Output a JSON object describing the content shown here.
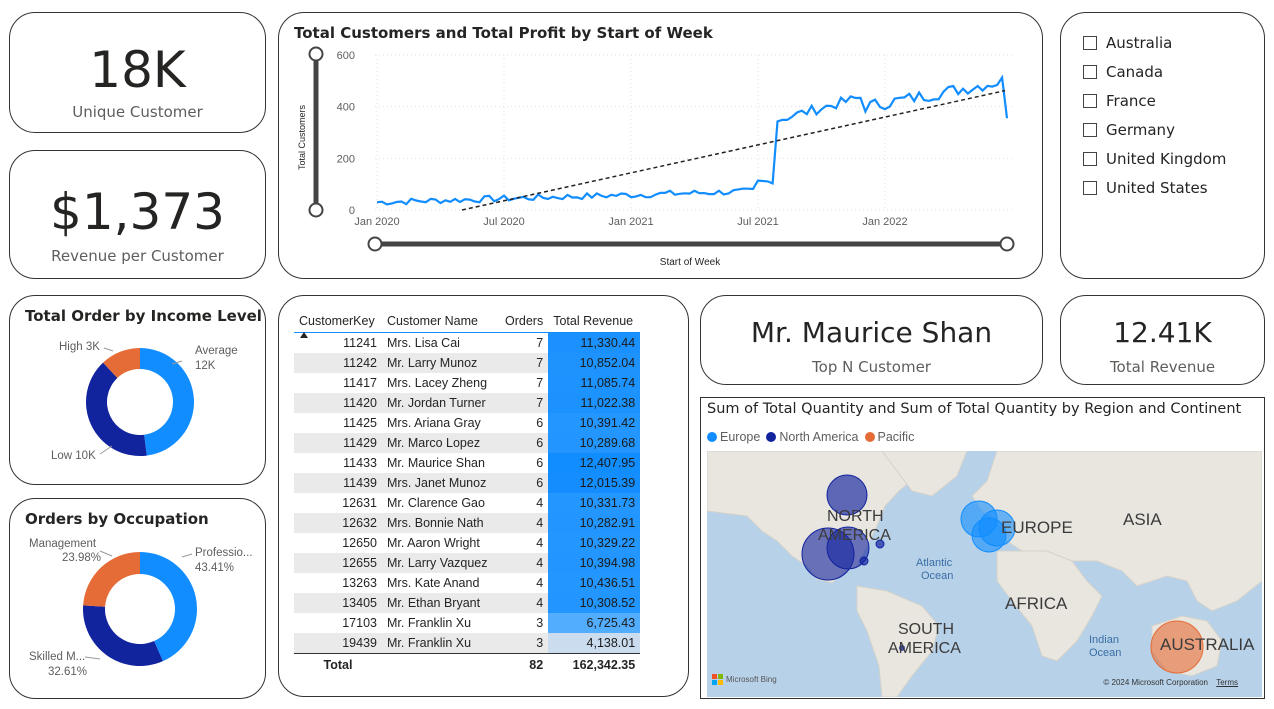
{
  "kpi_customers": {
    "value": "18K",
    "label": "Unique Customer"
  },
  "kpi_rev_per_cust": {
    "value": "$1,373",
    "label": "Revenue per Customer"
  },
  "line_chart": {
    "title": "Total Customers and Total Profit by Start of Week",
    "ylabel": "Total Customers",
    "xlabel": "Start of Week",
    "yticks": [
      "600",
      "400",
      "200",
      "0"
    ],
    "xticks": [
      "Jan 2020",
      "Jul 2020",
      "Jan 2021",
      "Jul 2021",
      "Jan 2022"
    ]
  },
  "country_slicer": {
    "items": [
      "Australia",
      "Canada",
      "France",
      "Germany",
      "United Kingdom",
      "United States"
    ]
  },
  "income_donut": {
    "title": "Total Order by Income Level",
    "labels": {
      "average": "Average",
      "average_val": "12K",
      "high": "High 3K",
      "low": "Low 10K"
    }
  },
  "occupation_donut": {
    "title": "Orders by Occupation",
    "labels": {
      "management": "Management",
      "management_pct": "23.98%",
      "professional": "Professio...",
      "professional_pct": "43.41%",
      "skilled": "Skilled M...",
      "skilled_pct": "32.61%"
    }
  },
  "customer_table": {
    "headers": [
      "CustomerKey",
      "Customer Name",
      "Orders",
      "Total Revenue"
    ],
    "rows": [
      {
        "key": "11241",
        "name": "Mrs. Lisa Cai",
        "orders": "7",
        "revenue": "11,330.44"
      },
      {
        "key": "11242",
        "name": "Mr. Larry Munoz",
        "orders": "7",
        "revenue": "10,852.04"
      },
      {
        "key": "11417",
        "name": "Mrs. Lacey Zheng",
        "orders": "7",
        "revenue": "11,085.74"
      },
      {
        "key": "11420",
        "name": "Mr. Jordan Turner",
        "orders": "7",
        "revenue": "11,022.38"
      },
      {
        "key": "11425",
        "name": "Mrs. Ariana Gray",
        "orders": "6",
        "revenue": "10,391.42"
      },
      {
        "key": "11429",
        "name": "Mr. Marco Lopez",
        "orders": "6",
        "revenue": "10,289.68"
      },
      {
        "key": "11433",
        "name": "Mr. Maurice Shan",
        "orders": "6",
        "revenue": "12,407.95"
      },
      {
        "key": "11439",
        "name": "Mrs. Janet Munoz",
        "orders": "6",
        "revenue": "12,015.39"
      },
      {
        "key": "12631",
        "name": "Mr. Clarence Gao",
        "orders": "4",
        "revenue": "10,331.73"
      },
      {
        "key": "12632",
        "name": "Mrs. Bonnie Nath",
        "orders": "4",
        "revenue": "10,282.91"
      },
      {
        "key": "12650",
        "name": "Mr. Aaron Wright",
        "orders": "4",
        "revenue": "10,329.22"
      },
      {
        "key": "12655",
        "name": "Mr. Larry Vazquez",
        "orders": "4",
        "revenue": "10,394.98"
      },
      {
        "key": "13263",
        "name": "Mrs. Kate Anand",
        "orders": "4",
        "revenue": "10,436.51"
      },
      {
        "key": "13405",
        "name": "Mr. Ethan Bryant",
        "orders": "4",
        "revenue": "10,308.52"
      },
      {
        "key": "17103",
        "name": "Mr. Franklin Xu",
        "orders": "3",
        "revenue": "6,725.43"
      },
      {
        "key": "19439",
        "name": "Mr. Franklin Xu",
        "orders": "3",
        "revenue": "4,138.01"
      }
    ],
    "total": {
      "label": "Total",
      "orders": "82",
      "revenue": "162,342.35"
    }
  },
  "top_customer": {
    "value": "Mr. Maurice Shan",
    "label": "Top N Customer"
  },
  "total_revenue": {
    "value": "12.41K",
    "label": "Total Revenue"
  },
  "map": {
    "title": "Sum of Total Quantity and Sum of Total Quantity by Region and Continent",
    "legend": [
      {
        "name": "Europe",
        "color": "#118DFF"
      },
      {
        "name": "North America",
        "color": "#12239E"
      },
      {
        "name": "Pacific",
        "color": "#E66C37"
      }
    ],
    "labels": {
      "north_america": "NORTH AMERICA",
      "north": "NORTH",
      "america": "AMERICA",
      "europe": "EUROPE",
      "asia": "ASIA",
      "atlantic": "Atlantic",
      "ocean": "Ocean",
      "africa": "AFRICA",
      "south": "SOUTH",
      "south_america": "AMERICA",
      "indian": "Indian",
      "indian_ocean": "Ocean",
      "australia": "AUSTRALIA"
    },
    "bing": "Microsoft Bing",
    "copyright": "© 2024 Microsoft Corporation",
    "terms": "Terms"
  },
  "colors": {
    "blue": "#118DFF",
    "navy": "#12239E",
    "orange": "#E66C37",
    "line": "#118DFF"
  }
}
